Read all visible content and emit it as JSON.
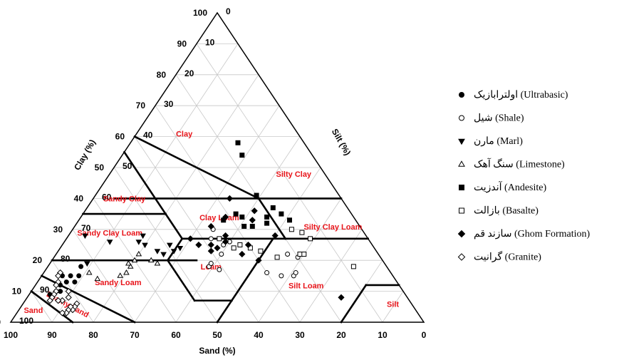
{
  "chart_data": {
    "type": "scatter",
    "subtype": "ternary",
    "title": "",
    "axes": {
      "sand": {
        "label": "Sand (%)",
        "ticks": [
          "100",
          "90",
          "80",
          "70",
          "60",
          "50",
          "40",
          "30",
          "20",
          "10",
          "0"
        ]
      },
      "clay": {
        "label": "Clay (%)",
        "ticks": [
          "0",
          "10",
          "20",
          "30",
          "40",
          "50",
          "60",
          "70",
          "80",
          "90",
          "100"
        ]
      },
      "silt": {
        "label": "Silt (%)",
        "ticks": [
          "0",
          "10",
          "20",
          "30",
          "40",
          "50",
          "60",
          "70",
          "80",
          "90",
          "100"
        ]
      }
    },
    "grid": true,
    "region_color": "#e8141a",
    "regions": [
      {
        "name": "Clay",
        "sand": 28,
        "clay": 60
      },
      {
        "name": "Silty Clay",
        "sand": 8,
        "clay": 47
      },
      {
        "name": "Sandy Clay",
        "sand": 53,
        "clay": 39
      },
      {
        "name": "Clay Loam",
        "sand": 33,
        "clay": 33
      },
      {
        "name": "Silty Clay Loam",
        "sand": 7,
        "clay": 30
      },
      {
        "name": "Sandy Clay Loam",
        "sand": 62,
        "clay": 28
      },
      {
        "name": "Loam",
        "sand": 43,
        "clay": 17
      },
      {
        "name": "Sandy Loam",
        "sand": 68,
        "clay": 12
      },
      {
        "name": "Silt Loam",
        "sand": 23,
        "clay": 11
      },
      {
        "name": "Loamy Sand",
        "sand": 84,
        "clay": 5
      },
      {
        "name": "Sand",
        "sand": 93,
        "clay": 3
      },
      {
        "name": "Silt",
        "sand": 5,
        "clay": 5
      }
    ],
    "legend": {
      "placement": "right",
      "entries": [
        {
          "marker": "circle-filled",
          "label": "اولترابازیک (Ultrabasic)"
        },
        {
          "marker": "circle-open",
          "label": "شیل (Shale)"
        },
        {
          "marker": "triangle-down-filled",
          "label": "مارن (Marl)"
        },
        {
          "marker": "triangle-up-open",
          "label": "سنگ آهک (Limestone)"
        },
        {
          "marker": "square-filled",
          "label": "آندزیت (Andesite)"
        },
        {
          "marker": "square-open",
          "label": "بازالت (Basalte)"
        },
        {
          "marker": "diamond-filled",
          "label": "سازند قم (Ghom Formation)"
        },
        {
          "marker": "diamond-open",
          "label": "گرانیت (Granite)"
        }
      ]
    },
    "series": [
      {
        "name": "اولترابازیک (Ultrabasic)",
        "marker": "circle-filled",
        "points": [
          [
            74,
            18
          ],
          [
            76,
            15
          ],
          [
            78,
            15
          ],
          [
            80,
            15
          ],
          [
            78,
            13
          ],
          [
            80,
            13
          ],
          [
            82,
            12
          ],
          [
            83,
            10
          ],
          [
            84,
            10
          ],
          [
            86,
            9
          ]
        ]
      },
      {
        "name": "شیل (Shale)",
        "marker": "circle-open",
        "points": [
          [
            43,
            18
          ],
          [
            41,
            17
          ],
          [
            42,
            19
          ],
          [
            38,
            22
          ],
          [
            36,
            25
          ],
          [
            38,
            27
          ],
          [
            34,
            26
          ],
          [
            36,
            30
          ],
          [
            20,
            21
          ],
          [
            22,
            22
          ],
          [
            30,
            16
          ],
          [
            27,
            15
          ],
          [
            24,
            15
          ],
          [
            23,
            16
          ]
        ]
      },
      {
        "name": "مارن (Marl)",
        "marker": "triangle-down-filled",
        "points": [
          [
            68,
            28
          ],
          [
            72,
            19
          ],
          [
            63,
            26
          ],
          [
            56,
            26
          ],
          [
            54,
            28
          ],
          [
            55,
            25
          ],
          [
            53,
            23
          ],
          [
            49,
            23
          ],
          [
            47,
            24
          ],
          [
            49,
            25
          ],
          [
            52,
            22
          ]
        ]
      },
      {
        "name": "سنگ آهک (Limestone)",
        "marker": "triangle-up-open",
        "points": [
          [
            72,
            14
          ],
          [
            73,
            16
          ],
          [
            64,
            16
          ],
          [
            62,
            18
          ],
          [
            60,
            20
          ],
          [
            56,
            20
          ],
          [
            55,
            19
          ],
          [
            58,
            22
          ],
          [
            62,
            19
          ],
          [
            66,
            15
          ]
        ]
      },
      {
        "name": "آندزیت (Andesite)",
        "marker": "square-filled",
        "points": [
          [
            16,
            58
          ],
          [
            17,
            54
          ],
          [
            20,
            41
          ],
          [
            17,
            35
          ],
          [
            18,
            37
          ],
          [
            16,
            33
          ],
          [
            21,
            34
          ],
          [
            28,
            35
          ],
          [
            27,
            34
          ],
          [
            22,
            32
          ],
          [
            26,
            31
          ],
          [
            28,
            31
          ],
          [
            32,
            33
          ]
        ]
      },
      {
        "name": "بازالت (Basalte)",
        "marker": "square-open",
        "points": [
          [
            17,
            30
          ],
          [
            15,
            29
          ],
          [
            14,
            27
          ],
          [
            8,
            18
          ],
          [
            19,
            22
          ],
          [
            18,
            22
          ],
          [
            25,
            21
          ],
          [
            28,
            23
          ],
          [
            30,
            24
          ],
          [
            32,
            25
          ],
          [
            34,
            24
          ],
          [
            36,
            27
          ]
        ]
      },
      {
        "name": "سازند قم (Ghom Formation)",
        "marker": "diamond-filled",
        "points": [
          [
            23,
            36
          ],
          [
            27,
            40
          ],
          [
            25,
            33
          ],
          [
            31,
            34
          ],
          [
            36,
            31
          ],
          [
            43,
            27
          ],
          [
            42,
            25
          ],
          [
            34,
            28
          ],
          [
            35,
            26
          ],
          [
            30,
            25
          ],
          [
            38,
            24
          ],
          [
            40,
            23
          ],
          [
            39,
            25
          ],
          [
            33,
            22
          ],
          [
            30,
            20
          ],
          [
            22,
            28
          ],
          [
            16,
            8
          ]
        ]
      },
      {
        "name": "گرانیت (Granite)",
        "marker": "diamond-open",
        "points": [
          [
            80,
            16
          ],
          [
            81,
            15
          ],
          [
            82,
            13
          ],
          [
            83,
            12
          ],
          [
            84,
            10
          ],
          [
            85,
            9
          ],
          [
            86,
            8
          ],
          [
            87,
            7
          ],
          [
            84,
            7
          ],
          [
            82,
            8
          ],
          [
            81,
            6
          ],
          [
            82,
            5
          ],
          [
            83,
            4
          ],
          [
            84,
            4
          ],
          [
            85,
            3
          ],
          [
            86,
            3
          ],
          [
            81,
            10
          ],
          [
            85,
            7
          ],
          [
            83,
            5
          ]
        ]
      }
    ]
  }
}
